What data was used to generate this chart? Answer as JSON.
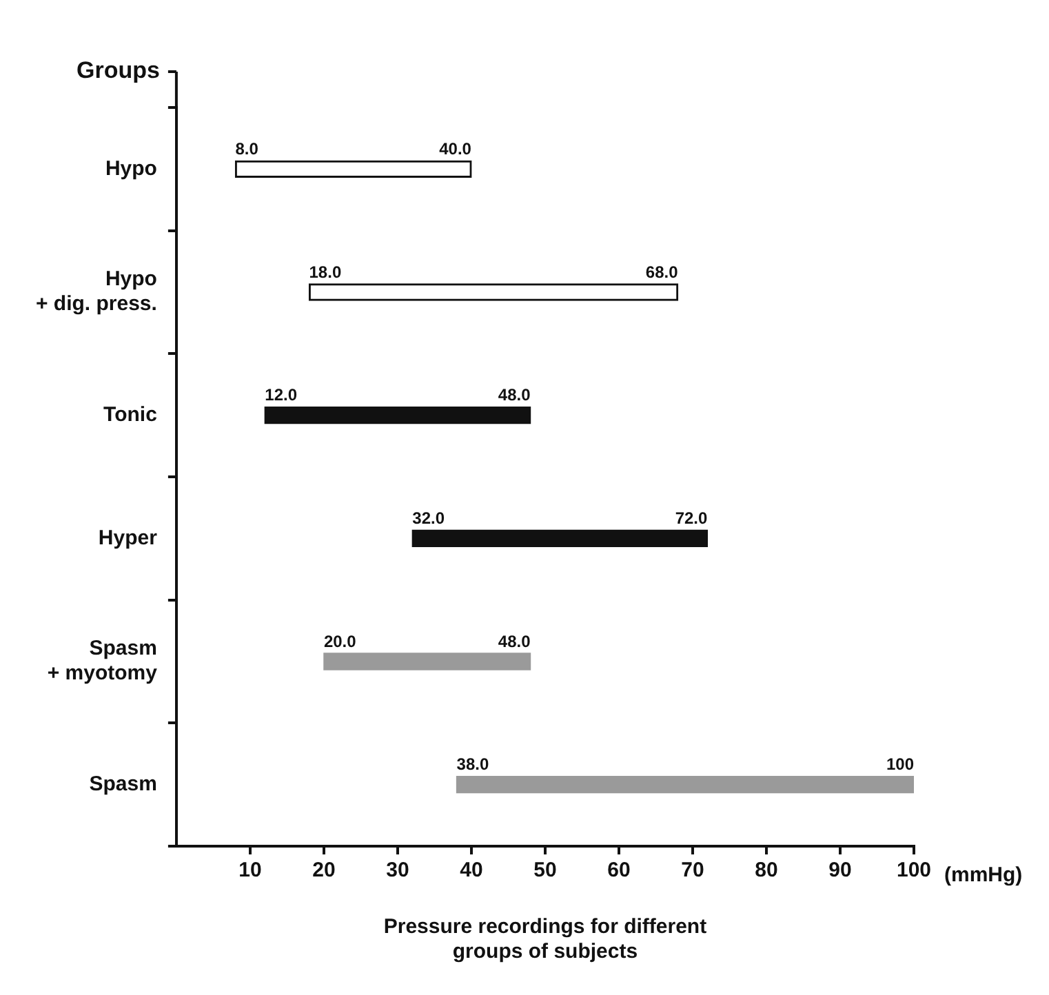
{
  "chart_data": {
    "type": "bar",
    "orientation": "horizontal",
    "ylabel": "Groups",
    "xlabel": "Pressure recordings for different\ngroups of subjects",
    "categories": [
      "Hypo",
      "Hypo\n+ dig. press.",
      "Tonic",
      "Hyper",
      "Spasm\n+ myotomy",
      "Spasm"
    ],
    "base": [
      8,
      18,
      12,
      32,
      20,
      38
    ],
    "values": [
      32,
      50,
      36,
      40,
      28,
      62
    ],
    "colors": [
      "#ffffff",
      "#ffffff",
      "#111111",
      "#111111",
      "#9a9a9a",
      "#9a9a9a"
    ],
    "xlim": [
      0,
      100
    ],
    "xticks": [
      10,
      20,
      30,
      40,
      50,
      60,
      70,
      80,
      90,
      100
    ],
    "grid": false,
    "legend": false,
    "annotations": [
      {
        "text": "8.0",
        "x": 8,
        "y": "Hypo"
      },
      {
        "text": "40.0",
        "x": 40,
        "y": "Hypo"
      },
      {
        "text": "18.0",
        "x": 18,
        "y": "Hypo\n+ dig. press."
      },
      {
        "text": "68.0",
        "x": 68,
        "y": "Hypo\n+ dig. press."
      },
      {
        "text": "12.0",
        "x": 12,
        "y": "Tonic"
      },
      {
        "text": "48.0",
        "x": 48,
        "y": "Tonic"
      },
      {
        "text": "32.0",
        "x": 32,
        "y": "Hyper"
      },
      {
        "text": "72.0",
        "x": 72,
        "y": "Hyper"
      },
      {
        "text": "20.0",
        "x": 20,
        "y": "Spasm\n+ myotomy"
      },
      {
        "text": "48.0",
        "x": 48,
        "y": "Spasm\n+ myotomy"
      },
      {
        "text": "38.0",
        "x": 38,
        "y": "Spasm"
      },
      {
        "text": "100",
        "x": 100,
        "y": "Spasm"
      },
      "(mmHg)"
    ]
  }
}
